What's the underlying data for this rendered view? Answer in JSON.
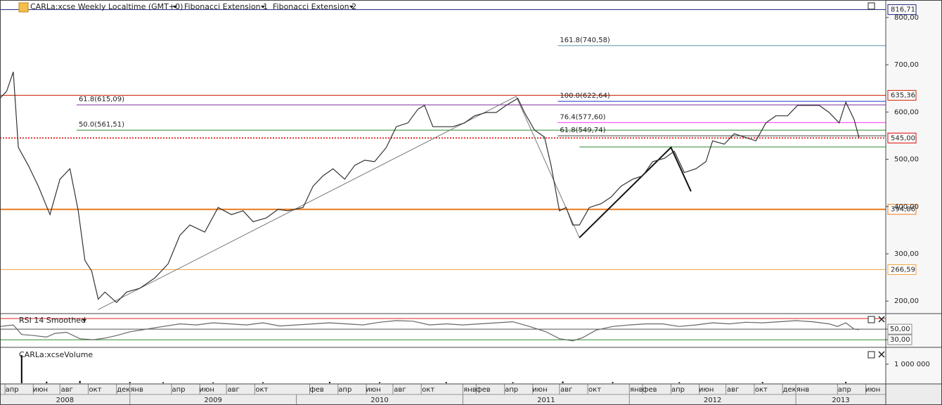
{
  "chart_data": [
    {
      "type": "line",
      "title": "CARLa:xcse Weekly Localtime (GMT+0)",
      "indicators": [
        "Fibonacci Extension 1",
        "Fibonacci Extension 2"
      ],
      "color": "#333333",
      "x": [
        2008.22,
        2008.26,
        2008.3,
        2008.33,
        2008.39,
        2008.45,
        2008.52,
        2008.58,
        2008.64,
        2008.69,
        2008.73,
        2008.77,
        2008.81,
        2008.85,
        2008.92,
        2008.98,
        2009.06,
        2009.15,
        2009.23,
        2009.3,
        2009.36,
        2009.45,
        2009.53,
        2009.61,
        2009.68,
        2009.74,
        2009.82,
        2009.89,
        2009.95,
        2010.04,
        2010.1,
        2010.16,
        2010.22,
        2010.29,
        2010.35,
        2010.41,
        2010.47,
        2010.54,
        2010.6,
        2010.67,
        2010.73,
        2010.77,
        2010.82,
        2010.88,
        2010.94,
        2011.01,
        2011.07,
        2011.14,
        2011.2,
        2011.26,
        2011.33,
        2011.37,
        2011.43,
        2011.49,
        2011.53,
        2011.58,
        2011.62,
        2011.66,
        2011.7,
        2011.76,
        2011.83,
        2011.89,
        2011.95,
        2012.02,
        2012.08,
        2012.14,
        2012.21,
        2012.27,
        2012.33,
        2012.4,
        2012.46,
        2012.5,
        2012.57,
        2012.63,
        2012.69,
        2012.76,
        2012.82,
        2012.88,
        2012.95,
        2013.01,
        2013.07,
        2013.14,
        2013.2,
        2013.26,
        2013.3,
        2013.35,
        2013.38
      ],
      "values": [
        629,
        644,
        685,
        525,
        487,
        443,
        383,
        458,
        480,
        391,
        286,
        264,
        204,
        219,
        197,
        219,
        227,
        249,
        279,
        339,
        361,
        346,
        398,
        383,
        391,
        368,
        376,
        394,
        391,
        398,
        443,
        465,
        480,
        458,
        487,
        498,
        495,
        525,
        569,
        577,
        606,
        614,
        569,
        569,
        569,
        577,
        592,
        599,
        599,
        614,
        629,
        599,
        562,
        547,
        487,
        391,
        398,
        361,
        361,
        398,
        406,
        420,
        443,
        458,
        465,
        495,
        502,
        517,
        472,
        480,
        495,
        539,
        532,
        554,
        547,
        539,
        577,
        592,
        592,
        614,
        614,
        614,
        599,
        577,
        621,
        584,
        545
      ],
      "xlim": [
        2008.22,
        2013.54
      ],
      "xticks": [
        {
          "value": 2008.25,
          "label": "апр"
        },
        {
          "value": 2008.42,
          "label": "июн"
        },
        {
          "value": 2008.58,
          "label": "авг"
        },
        {
          "value": 2008.75,
          "label": "окт"
        },
        {
          "value": 2008.92,
          "label": "дек"
        },
        {
          "value": 2009.0,
          "label": "янв"
        },
        {
          "value": 2009.25,
          "label": "апр"
        },
        {
          "value": 2009.42,
          "label": "июн"
        },
        {
          "value": 2009.58,
          "label": "авг"
        },
        {
          "value": 2009.75,
          "label": "окт"
        },
        {
          "value": 2010.08,
          "label": "фев"
        },
        {
          "value": 2010.25,
          "label": "апр"
        },
        {
          "value": 2010.42,
          "label": "июн"
        },
        {
          "value": 2010.58,
          "label": "авг"
        },
        {
          "value": 2010.75,
          "label": "окт"
        },
        {
          "value": 2011.0,
          "label": "янв"
        },
        {
          "value": 2011.08,
          "label": "фев"
        },
        {
          "value": 2011.25,
          "label": "апр"
        },
        {
          "value": 2011.42,
          "label": "июн"
        },
        {
          "value": 2011.58,
          "label": "авг"
        },
        {
          "value": 2011.75,
          "label": "окт"
        },
        {
          "value": 2012.0,
          "label": "янв"
        },
        {
          "value": 2012.08,
          "label": "фев"
        },
        {
          "value": 2012.25,
          "label": "апр"
        },
        {
          "value": 2012.42,
          "label": "июн"
        },
        {
          "value": 2012.58,
          "label": "авг"
        },
        {
          "value": 2012.75,
          "label": "окт"
        },
        {
          "value": 2012.92,
          "label": "дек"
        },
        {
          "value": 2013.0,
          "label": "янв"
        },
        {
          "value": 2013.25,
          "label": "апр"
        },
        {
          "value": 2013.42,
          "label": "июн"
        }
      ],
      "years": [
        2008,
        2009,
        2010,
        2011,
        2012,
        2013
      ],
      "ylim": [
        175,
        837
      ],
      "yticks": [
        {
          "value": 200,
          "label": "200,00"
        },
        {
          "value": 300,
          "label": "300,00"
        },
        {
          "value": 400,
          "label": "400,00"
        },
        {
          "value": 500,
          "label": "500,00"
        },
        {
          "value": 600,
          "label": "600,00"
        },
        {
          "value": 700,
          "label": "700,00"
        },
        {
          "value": 800,
          "label": "800,00"
        }
      ],
      "levels": [
        {
          "value": 816.71,
          "color": "#1a237e",
          "axis_label": "816,71"
        },
        {
          "value": 740.58,
          "color": "#5b8fa8",
          "from": 2011.57,
          "label": "161.8(740,58)"
        },
        {
          "value": 635.36,
          "color": "#cc2200",
          "axis_label": "635,36"
        },
        {
          "value": 622.64,
          "color": "#2233cc",
          "from": 2011.57,
          "label": "100.0(622,64)"
        },
        {
          "value": 615.09,
          "color": "#7a2a9a",
          "from": 2008.68,
          "label": "61.8(615,09)"
        },
        {
          "value": 577.6,
          "color": "#ff33ff",
          "from": 2011.57,
          "label": "76.4(577,60)"
        },
        {
          "value": 561.51,
          "color": "#2e8b2e",
          "from": 2008.68,
          "label": "50.0(561,51)"
        },
        {
          "value": 549.74,
          "color": "#444444",
          "from": 2011.57,
          "label": "61.8(549,74)"
        },
        {
          "value": 545.0,
          "color": "#dd0000",
          "style": "dotted",
          "axis_label": "545,00"
        },
        {
          "value": 526,
          "color": "#2e8b2e",
          "from": 2011.7
        },
        {
          "value": 394.06,
          "color": "#e87a1e",
          "style": "bold",
          "axis_label": "394,06"
        },
        {
          "value": 266.59,
          "color": "#f0a040",
          "axis_label": "266,59"
        }
      ],
      "drawings": [
        {
          "color": "#777777",
          "points": [
            [
              2008.81,
              182
            ],
            [
              2011.32,
              633
            ],
            [
              2011.7,
              334
            ]
          ]
        },
        {
          "color": "#111111",
          "style": "bold",
          "points": [
            [
              2011.7,
              334
            ],
            [
              2012.25,
              525
            ],
            [
              2012.37,
              432
            ]
          ]
        }
      ]
    },
    {
      "type": "line",
      "title": "RSI 14 Smoothed",
      "color": "#666666",
      "x": [
        2008.22,
        2008.3,
        2008.35,
        2008.42,
        2008.5,
        2008.55,
        2008.62,
        2008.7,
        2008.78,
        2008.85,
        2008.92,
        2009.0,
        2009.1,
        2009.2,
        2009.3,
        2009.4,
        2009.5,
        2009.6,
        2009.7,
        2009.8,
        2009.9,
        2010.0,
        2010.1,
        2010.2,
        2010.3,
        2010.4,
        2010.5,
        2010.6,
        2010.7,
        2010.8,
        2010.9,
        2011.0,
        2011.1,
        2011.2,
        2011.3,
        2011.4,
        2011.5,
        2011.58,
        2011.66,
        2011.72,
        2011.8,
        2011.9,
        2012.0,
        2012.1,
        2012.2,
        2012.3,
        2012.4,
        2012.5,
        2012.6,
        2012.7,
        2012.8,
        2012.9,
        2013.0,
        2013.1,
        2013.2,
        2013.25,
        2013.3,
        2013.35,
        2013.38
      ],
      "values": [
        55,
        58,
        40,
        38,
        35,
        42,
        44,
        32,
        30,
        33,
        38,
        45,
        50,
        55,
        60,
        58,
        62,
        60,
        58,
        62,
        56,
        58,
        60,
        62,
        60,
        58,
        63,
        66,
        65,
        58,
        60,
        58,
        60,
        62,
        64,
        55,
        45,
        32,
        28,
        34,
        48,
        55,
        58,
        60,
        60,
        55,
        58,
        62,
        60,
        63,
        62,
        64,
        66,
        64,
        60,
        55,
        62,
        50,
        49
      ],
      "ylim": [
        17,
        78
      ],
      "yticks": [
        {
          "value": 50,
          "label": "50,00"
        },
        {
          "value": 30,
          "label": "30,00"
        }
      ],
      "levels": [
        {
          "value": 70,
          "color": "#dd2222"
        },
        {
          "value": 50,
          "color": "#555555"
        },
        {
          "value": 30,
          "color": "#2e8b2e"
        }
      ]
    },
    {
      "type": "bar",
      "title": "CARLa:xcseVolume",
      "color": "#000000",
      "x": [
        2008.35,
        2008.5,
        2008.7,
        2009.0,
        2009.2,
        2009.5,
        2009.8,
        2010.2,
        2010.5,
        2010.9,
        2011.3,
        2011.6,
        2011.9,
        2012.3,
        2012.8,
        2013.3
      ],
      "values": [
        1480000,
        80000,
        120000,
        60000,
        50000,
        40000,
        50000,
        70000,
        50000,
        60000,
        50000,
        90000,
        60000,
        50000,
        60000,
        70000
      ],
      "ylim": [
        0,
        1850000
      ],
      "yticks": [
        {
          "value": 1000000,
          "label": "1 000 000"
        }
      ]
    }
  ]
}
